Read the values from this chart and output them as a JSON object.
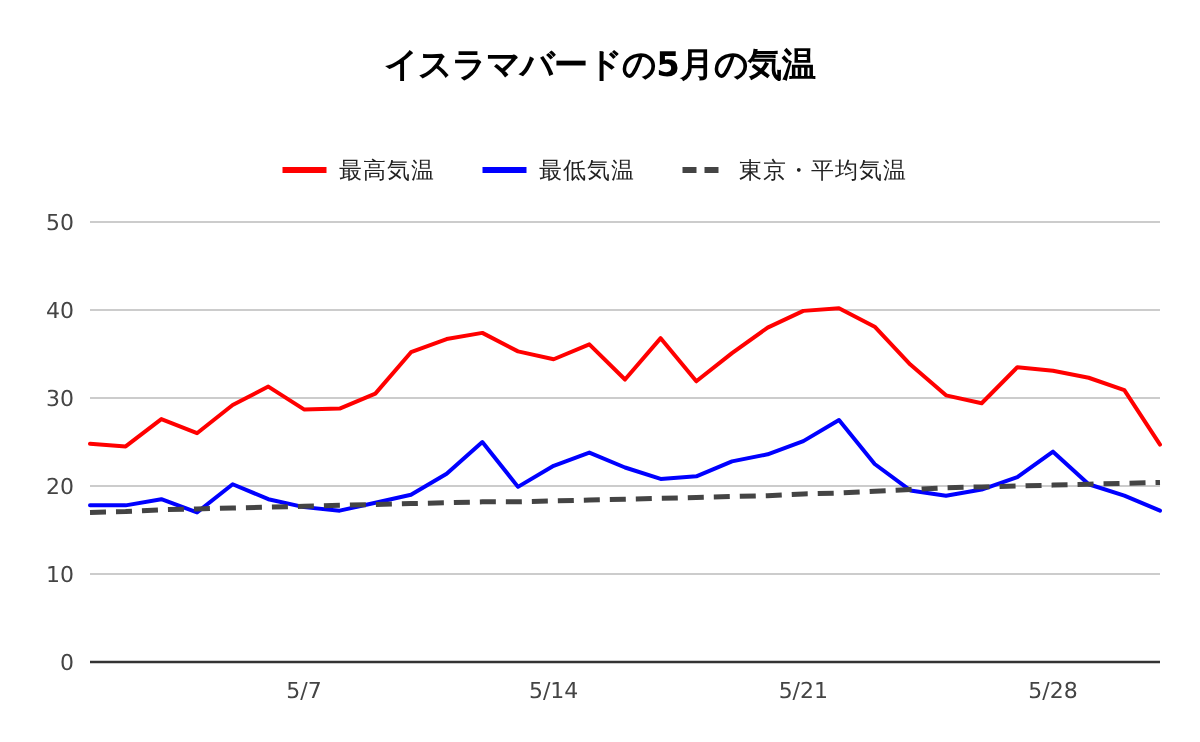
{
  "chart_data": {
    "type": "line",
    "title": "イスラマバードの5月の気温",
    "categories": [
      null,
      null,
      null,
      null,
      null,
      null,
      "5/7",
      null,
      null,
      null,
      null,
      null,
      null,
      "5/14",
      null,
      null,
      null,
      null,
      null,
      null,
      "5/21",
      null,
      null,
      null,
      null,
      null,
      null,
      "5/28",
      null,
      null,
      null
    ],
    "series": [
      {
        "name": "最高気温",
        "color": "#ff0000",
        "line_style": "solid",
        "values": [
          24.8,
          24.5,
          27.6,
          26.0,
          29.2,
          31.3,
          28.7,
          28.8,
          30.5,
          35.2,
          36.7,
          37.4,
          35.3,
          34.4,
          36.1,
          32.1,
          36.8,
          31.9,
          35.1,
          38.0,
          39.9,
          40.2,
          38.1,
          33.8,
          30.3,
          29.4,
          33.5,
          33.1,
          32.3,
          30.9,
          24.7
        ]
      },
      {
        "name": "最低気温",
        "color": "#0000ff",
        "line_style": "solid",
        "values": [
          17.8,
          17.8,
          18.5,
          17.0,
          20.2,
          18.5,
          17.6,
          17.2,
          18.1,
          19.0,
          21.4,
          25.0,
          19.9,
          22.3,
          23.8,
          22.1,
          20.8,
          21.1,
          22.8,
          23.6,
          25.1,
          27.5,
          22.5,
          19.5,
          18.9,
          19.6,
          21.0,
          23.9,
          20.2,
          18.9,
          17.2
        ]
      },
      {
        "name": "東京・平均気温",
        "color": "#444444",
        "line_style": "dashed",
        "values": [
          17.0,
          17.1,
          17.3,
          17.4,
          17.5,
          17.6,
          17.7,
          17.8,
          17.9,
          18.0,
          18.1,
          18.2,
          18.2,
          18.3,
          18.4,
          18.5,
          18.6,
          18.7,
          18.8,
          18.9,
          19.1,
          19.2,
          19.4,
          19.6,
          19.8,
          19.9,
          20.0,
          20.1,
          20.2,
          20.3,
          20.4
        ]
      }
    ],
    "ylim": [
      0,
      50
    ],
    "yticks": [
      0,
      10,
      20,
      30,
      40,
      50
    ],
    "grid": "y",
    "legend": "top",
    "marker": "none"
  }
}
